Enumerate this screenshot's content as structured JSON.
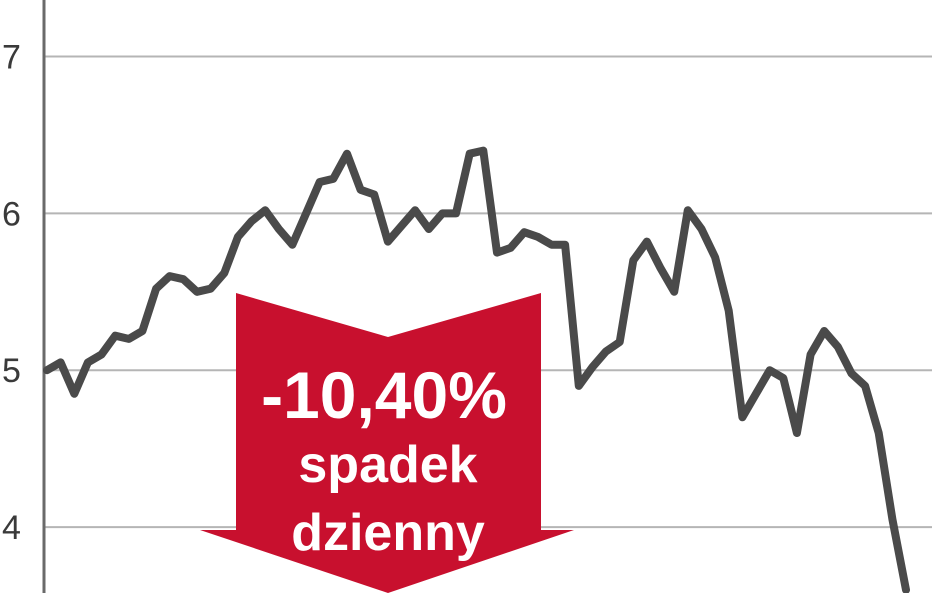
{
  "chart_data": {
    "type": "line",
    "y_ticks": [
      4,
      5,
      6,
      7
    ],
    "y_tick_labels": [
      "4",
      "5",
      "6",
      "7"
    ],
    "ylim": [
      3.58,
      7.36
    ],
    "grid": true,
    "series": [
      {
        "values": [
          5.0,
          5.05,
          4.85,
          5.05,
          5.1,
          5.22,
          5.2,
          5.25,
          5.52,
          5.6,
          5.58,
          5.5,
          5.52,
          5.62,
          5.85,
          5.95,
          6.02,
          5.9,
          5.8,
          6.0,
          6.2,
          6.22,
          6.38,
          6.15,
          6.12,
          5.82,
          5.92,
          6.02,
          5.9,
          6.0,
          6.0,
          6.38,
          6.4,
          5.75,
          5.78,
          5.88,
          5.85,
          5.8,
          5.8,
          4.9,
          5.02,
          5.12,
          5.18,
          5.7,
          5.82,
          5.65,
          5.5,
          6.02,
          5.9,
          5.72,
          5.38,
          4.7,
          4.85,
          5.0,
          4.95,
          4.6,
          5.1,
          5.25,
          5.15,
          4.98,
          4.9,
          4.6,
          4.05,
          3.6
        ]
      }
    ],
    "colors": {
      "line": "#4a4a4a",
      "grid": "#b5b5b5",
      "axis": "#6a6a6a",
      "callout": "#c8102e"
    }
  },
  "callout": {
    "main": "-10,40%",
    "line1": "spadek",
    "line2": "dzienny"
  }
}
